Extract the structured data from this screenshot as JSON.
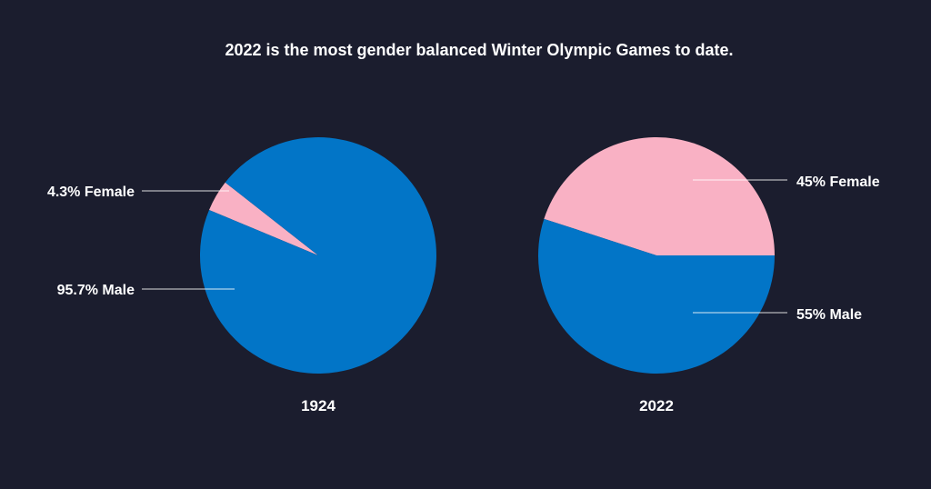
{
  "title": "2022 is the most gender balanced Winter Olympic Games to date.",
  "colors": {
    "background": "#1b1d2e",
    "female": "#f9b1c4",
    "male": "#0275c7",
    "text": "#ffffff"
  },
  "chart_data": [
    {
      "type": "pie",
      "year_label": "1924",
      "slices": [
        {
          "name": "Female",
          "value": 4.3,
          "label": "4.3% Female",
          "color": "#f9b1c4"
        },
        {
          "name": "Male",
          "value": 95.7,
          "label": "95.7% Male",
          "color": "#0275c7"
        }
      ]
    },
    {
      "type": "pie",
      "year_label": "2022",
      "slices": [
        {
          "name": "Female",
          "value": 45,
          "label": "45% Female",
          "color": "#f9b1c4"
        },
        {
          "name": "Male",
          "value": 55,
          "label": "55% Male",
          "color": "#0275c7"
        }
      ]
    }
  ]
}
